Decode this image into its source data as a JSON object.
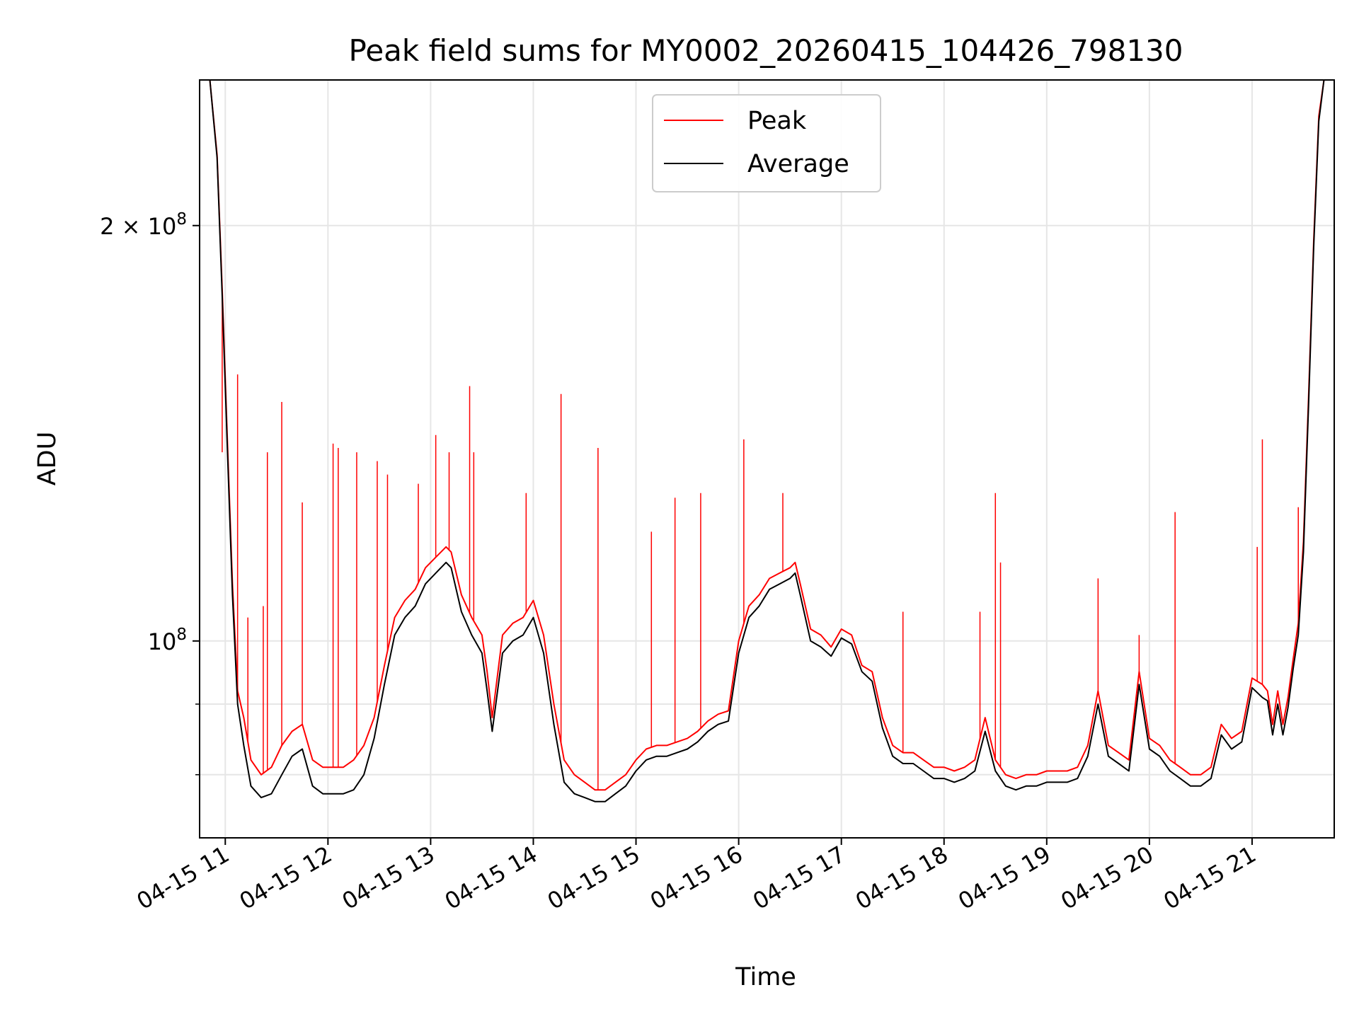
{
  "chart_data": {
    "type": "line",
    "title": "Peak field sums for MY0002_20260415_104426_798130",
    "xlabel": "Time",
    "ylabel": "ADU",
    "yscale": "log",
    "ylim": [
      72000000,
      255000000
    ],
    "xlim": [
      10.75,
      21.8
    ],
    "grid": true,
    "legend_position": "top-center",
    "x_tick_values": [
      11,
      12,
      13,
      14,
      15,
      16,
      17,
      18,
      19,
      20,
      21
    ],
    "x_tick_labels": [
      "04-15 11",
      "04-15 12",
      "04-15 13",
      "04-15 14",
      "04-15 15",
      "04-15 16",
      "04-15 17",
      "04-15 18",
      "04-15 19",
      "04-15 20",
      "04-15 21"
    ],
    "y_major_ticks": [
      {
        "value": 200000000,
        "base": "2 × 10",
        "exp": "8"
      },
      {
        "value": 100000000,
        "base": "10",
        "exp": "8"
      }
    ],
    "y_minor_ticks": [
      80000000,
      90000000
    ],
    "series": [
      {
        "name": "Peak",
        "color": "#ff0000",
        "x": [
          10.85,
          10.92,
          10.97,
          11.02,
          11.07,
          11.12,
          11.18,
          11.25,
          11.35,
          11.45,
          11.55,
          11.65,
          11.75,
          11.85,
          11.95,
          12.05,
          12.15,
          12.25,
          12.35,
          12.45,
          12.55,
          12.65,
          12.75,
          12.85,
          12.95,
          13.05,
          13.15,
          13.2,
          13.3,
          13.4,
          13.5,
          13.55,
          13.6,
          13.7,
          13.8,
          13.9,
          14.0,
          14.1,
          14.2,
          14.3,
          14.4,
          14.5,
          14.6,
          14.7,
          14.8,
          14.9,
          15.0,
          15.1,
          15.2,
          15.3,
          15.4,
          15.5,
          15.6,
          15.7,
          15.8,
          15.9,
          16.0,
          16.1,
          16.2,
          16.3,
          16.4,
          16.5,
          16.55,
          16.6,
          16.7,
          16.8,
          16.9,
          17.0,
          17.1,
          17.2,
          17.3,
          17.4,
          17.5,
          17.6,
          17.7,
          17.8,
          17.9,
          18.0,
          18.1,
          18.2,
          18.3,
          18.4,
          18.5,
          18.6,
          18.7,
          18.8,
          18.9,
          19.0,
          19.1,
          19.2,
          19.3,
          19.4,
          19.5,
          19.6,
          19.7,
          19.8,
          19.9,
          20.0,
          20.1,
          20.2,
          20.3,
          20.4,
          20.5,
          20.6,
          20.7,
          20.8,
          20.9,
          21.0,
          21.1,
          21.15,
          21.2,
          21.25,
          21.3,
          21.35,
          21.4,
          21.45,
          21.5,
          21.55,
          21.6,
          21.65,
          21.7
        ],
        "y": [
          255000000,
          225000000,
          180000000,
          140000000,
          110000000,
          92000000,
          88000000,
          82000000,
          80000000,
          81000000,
          84000000,
          86000000,
          87000000,
          82000000,
          81000000,
          81000000,
          81000000,
          82000000,
          84000000,
          88000000,
          96000000,
          104000000,
          107000000,
          109000000,
          113000000,
          115000000,
          117000000,
          116000000,
          108000000,
          104000000,
          101000000,
          95000000,
          88000000,
          101000000,
          103000000,
          104000000,
          107000000,
          101000000,
          90000000,
          82000000,
          80000000,
          79000000,
          78000000,
          78000000,
          79000000,
          80000000,
          82000000,
          83500000,
          84000000,
          84000000,
          84500000,
          85000000,
          86000000,
          87500000,
          88500000,
          89000000,
          100000000,
          106000000,
          108000000,
          111000000,
          112000000,
          113000000,
          114000000,
          110000000,
          102000000,
          101000000,
          99000000,
          102000000,
          101000000,
          96000000,
          95000000,
          88000000,
          84000000,
          83000000,
          83000000,
          82000000,
          81000000,
          81000000,
          80500000,
          81000000,
          82000000,
          88000000,
          82000000,
          80000000,
          79500000,
          80000000,
          80000000,
          80500000,
          80500000,
          80500000,
          81000000,
          84000000,
          92000000,
          84000000,
          83000000,
          82000000,
          95000000,
          85000000,
          84000000,
          82000000,
          81000000,
          80000000,
          80000000,
          81000000,
          87000000,
          85000000,
          86000000,
          94000000,
          93000000,
          92000000,
          87000000,
          92000000,
          87000000,
          91000000,
          97000000,
          103000000,
          118000000,
          150000000,
          195000000,
          240000000,
          255000000
        ],
        "spikes": [
          {
            "x": 10.97,
            "y": 137000000
          },
          {
            "x": 11.12,
            "y": 156000000
          },
          {
            "x": 11.22,
            "y": 104000000
          },
          {
            "x": 11.37,
            "y": 106000000
          },
          {
            "x": 11.41,
            "y": 137000000
          },
          {
            "x": 11.55,
            "y": 149000000
          },
          {
            "x": 11.75,
            "y": 126000000
          },
          {
            "x": 12.05,
            "y": 139000000
          },
          {
            "x": 12.1,
            "y": 138000000
          },
          {
            "x": 12.28,
            "y": 137000000
          },
          {
            "x": 12.48,
            "y": 135000000
          },
          {
            "x": 12.58,
            "y": 132000000
          },
          {
            "x": 12.88,
            "y": 130000000
          },
          {
            "x": 13.05,
            "y": 141000000
          },
          {
            "x": 13.18,
            "y": 137000000
          },
          {
            "x": 13.38,
            "y": 153000000
          },
          {
            "x": 13.42,
            "y": 137000000
          },
          {
            "x": 13.93,
            "y": 128000000
          },
          {
            "x": 14.27,
            "y": 151000000
          },
          {
            "x": 14.63,
            "y": 138000000
          },
          {
            "x": 15.15,
            "y": 120000000
          },
          {
            "x": 15.38,
            "y": 127000000
          },
          {
            "x": 15.63,
            "y": 128000000
          },
          {
            "x": 16.05,
            "y": 140000000
          },
          {
            "x": 16.43,
            "y": 128000000
          },
          {
            "x": 17.6,
            "y": 105000000
          },
          {
            "x": 18.35,
            "y": 105000000
          },
          {
            "x": 18.5,
            "y": 128000000
          },
          {
            "x": 18.55,
            "y": 114000000
          },
          {
            "x": 19.5,
            "y": 111000000
          },
          {
            "x": 19.9,
            "y": 101000000
          },
          {
            "x": 20.25,
            "y": 124000000
          },
          {
            "x": 21.05,
            "y": 117000000
          },
          {
            "x": 21.1,
            "y": 140000000
          },
          {
            "x": 21.45,
            "y": 125000000
          }
        ]
      },
      {
        "name": "Average",
        "color": "#000000",
        "x": [
          10.85,
          10.92,
          10.97,
          11.02,
          11.07,
          11.12,
          11.18,
          11.25,
          11.35,
          11.45,
          11.55,
          11.65,
          11.75,
          11.85,
          11.95,
          12.05,
          12.15,
          12.25,
          12.35,
          12.45,
          12.55,
          12.65,
          12.75,
          12.85,
          12.95,
          13.05,
          13.15,
          13.2,
          13.3,
          13.4,
          13.5,
          13.55,
          13.6,
          13.7,
          13.8,
          13.9,
          14.0,
          14.1,
          14.2,
          14.3,
          14.4,
          14.5,
          14.6,
          14.7,
          14.8,
          14.9,
          15.0,
          15.1,
          15.2,
          15.3,
          15.4,
          15.5,
          15.6,
          15.7,
          15.8,
          15.9,
          16.0,
          16.1,
          16.2,
          16.3,
          16.4,
          16.5,
          16.55,
          16.6,
          16.7,
          16.8,
          16.9,
          17.0,
          17.1,
          17.2,
          17.3,
          17.4,
          17.5,
          17.6,
          17.7,
          17.8,
          17.9,
          18.0,
          18.1,
          18.2,
          18.3,
          18.4,
          18.5,
          18.6,
          18.7,
          18.8,
          18.9,
          19.0,
          19.1,
          19.2,
          19.3,
          19.4,
          19.5,
          19.6,
          19.7,
          19.8,
          19.9,
          20.0,
          20.1,
          20.2,
          20.3,
          20.4,
          20.5,
          20.6,
          20.7,
          20.8,
          20.9,
          21.0,
          21.1,
          21.15,
          21.2,
          21.25,
          21.3,
          21.35,
          21.4,
          21.45,
          21.5,
          21.55,
          21.6,
          21.65,
          21.7
        ],
        "y": [
          255000000,
          224000000,
          178000000,
          138000000,
          108000000,
          90000000,
          84000000,
          78500000,
          77000000,
          77500000,
          80000000,
          82500000,
          83500000,
          78500000,
          77500000,
          77500000,
          77500000,
          78000000,
          80000000,
          85000000,
          93000000,
          101000000,
          104000000,
          106000000,
          110000000,
          112000000,
          114000000,
          113000000,
          105000000,
          101000000,
          98000000,
          92000000,
          86000000,
          98000000,
          100000000,
          101000000,
          104000000,
          98000000,
          87000000,
          79000000,
          77500000,
          77000000,
          76500000,
          76500000,
          77500000,
          78500000,
          80500000,
          82000000,
          82500000,
          82500000,
          83000000,
          83500000,
          84500000,
          86000000,
          87000000,
          87500000,
          98000000,
          104000000,
          106000000,
          109000000,
          110000000,
          111000000,
          112000000,
          108000000,
          100000000,
          99000000,
          97500000,
          100500000,
          99500000,
          95000000,
          93500000,
          86500000,
          82500000,
          81500000,
          81500000,
          80500000,
          79500000,
          79500000,
          79000000,
          79500000,
          80500000,
          86000000,
          80500000,
          78500000,
          78000000,
          78500000,
          78500000,
          79000000,
          79000000,
          79000000,
          79500000,
          82500000,
          90000000,
          82500000,
          81500000,
          80500000,
          93000000,
          83500000,
          82500000,
          80500000,
          79500000,
          78500000,
          78500000,
          79500000,
          85500000,
          83500000,
          84500000,
          92500000,
          91000000,
          90500000,
          85500000,
          90000000,
          85500000,
          89500000,
          95500000,
          101000000,
          116000000,
          148000000,
          193000000,
          238000000,
          255000000
        ]
      }
    ]
  }
}
